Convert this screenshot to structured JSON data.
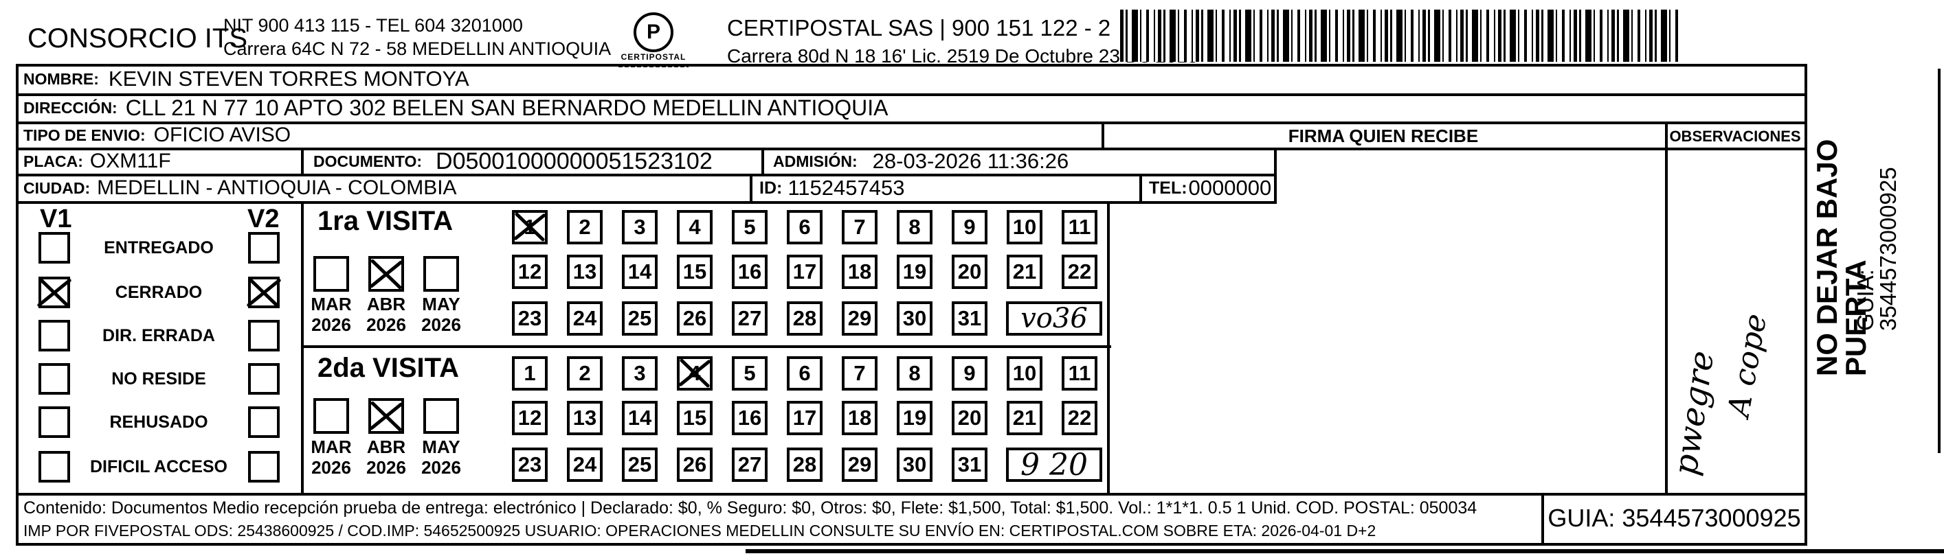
{
  "colors": {
    "ink": "#000000",
    "paper": "#ffffff"
  },
  "header": {
    "company": "CONSORCIO ITS",
    "nit_line1": "NIT 900 413 115 - TEL 604 3201000",
    "nit_line2": "Carrera 64C N 72 - 58 MEDELLIN ANTIOQUIA",
    "logo_text": "CERTIPOSTAL",
    "cp_line1": "CERTIPOSTAL SAS | 900 151 122 - 2",
    "cp_line2": "Carrera 80d N 18 16' Lic. 2519 De Octubre 23 De 2015"
  },
  "recipient": {
    "nombre_label": "NOMBRE:",
    "nombre": "KEVIN STEVEN TORRES MONTOYA",
    "direccion_label": "DIRECCIÓN:",
    "direccion": "CLL 21 N 77 10 APTO 302 BELEN SAN BERNARDO MEDELLIN ANTIOQUIA",
    "tipo_label": "TIPO DE ENVIO:",
    "tipo": "OFICIO AVISO",
    "placa_label": "PLACA:",
    "placa": "OXM11F",
    "documento_label": "DOCUMENTO:",
    "documento": "D05001000000051523102",
    "admision_label": "ADMISIÓN:",
    "admision": "28-03-2026 11:36:26",
    "ciudad_label": "CIUDAD:",
    "ciudad": "MEDELLIN - ANTIOQUIA - COLOMBIA",
    "id_label": "ID:",
    "id_value": "1152457453",
    "tel_label": "TEL:",
    "tel_value": "0000000"
  },
  "columns": {
    "firma_header": "FIRMA QUIEN RECIBE",
    "observaciones_header": "OBSERVACIONES"
  },
  "status": {
    "v1_header": "V1",
    "v2_header": "V2",
    "rows": [
      {
        "label": "ENTREGADO",
        "v1_checked": false,
        "v2_checked": false
      },
      {
        "label": "CERRADO",
        "v1_checked": true,
        "v2_checked": true
      },
      {
        "label": "DIR. ERRADA",
        "v1_checked": false,
        "v2_checked": false
      },
      {
        "label": "NO RESIDE",
        "v1_checked": false,
        "v2_checked": false
      },
      {
        "label": "REHUSADO",
        "v1_checked": false,
        "v2_checked": false
      },
      {
        "label": "DIFICIL ACCESO",
        "v1_checked": false,
        "v2_checked": false
      }
    ]
  },
  "visits": [
    {
      "title": "1ra VISITA",
      "months": [
        {
          "label": "MAR",
          "year": "2026",
          "checked": false
        },
        {
          "label": "ABR",
          "year": "2026",
          "checked": true
        },
        {
          "label": "MAY",
          "year": "2026",
          "checked": false
        }
      ],
      "day_start": 1,
      "day_end": 31,
      "marked_days": [
        1
      ],
      "note": "vo36"
    },
    {
      "title": "2da VISITA",
      "months": [
        {
          "label": "MAR",
          "year": "2026",
          "checked": false
        },
        {
          "label": "ABR",
          "year": "2026",
          "checked": true
        },
        {
          "label": "MAY",
          "year": "2026",
          "checked": false
        }
      ],
      "day_start": 1,
      "day_end": 31,
      "marked_days": [
        4
      ],
      "note": "9 20"
    }
  ],
  "observaciones_notes": {
    "line1": "pwegre",
    "line2": "A cope"
  },
  "side": {
    "no_dejar": "NO DEJAR BAJO PUERTA",
    "guia": "GUIA: 3544573000925"
  },
  "footer": {
    "contenido": "Contenido: Documentos Medio recepción prueba de entrega: electrónico | Declarado: $0, % Seguro: $0, Otros: $0, Flete: $1,500, Total: $1,500. Vol.: 1*1*1. 0.5  1 Unid. COD. POSTAL: 050034",
    "imp": "IMP POR FIVEPOSTAL ODS: 25438600925 / COD.IMP: 54652500925 USUARIO: OPERACIONES MEDELLIN CONSULTE SU ENVÍO EN: CERTIPOSTAL.COM SOBRE ETA: 2026-04-01 D+2",
    "guia_box": "GUIA: 3544573000925"
  }
}
